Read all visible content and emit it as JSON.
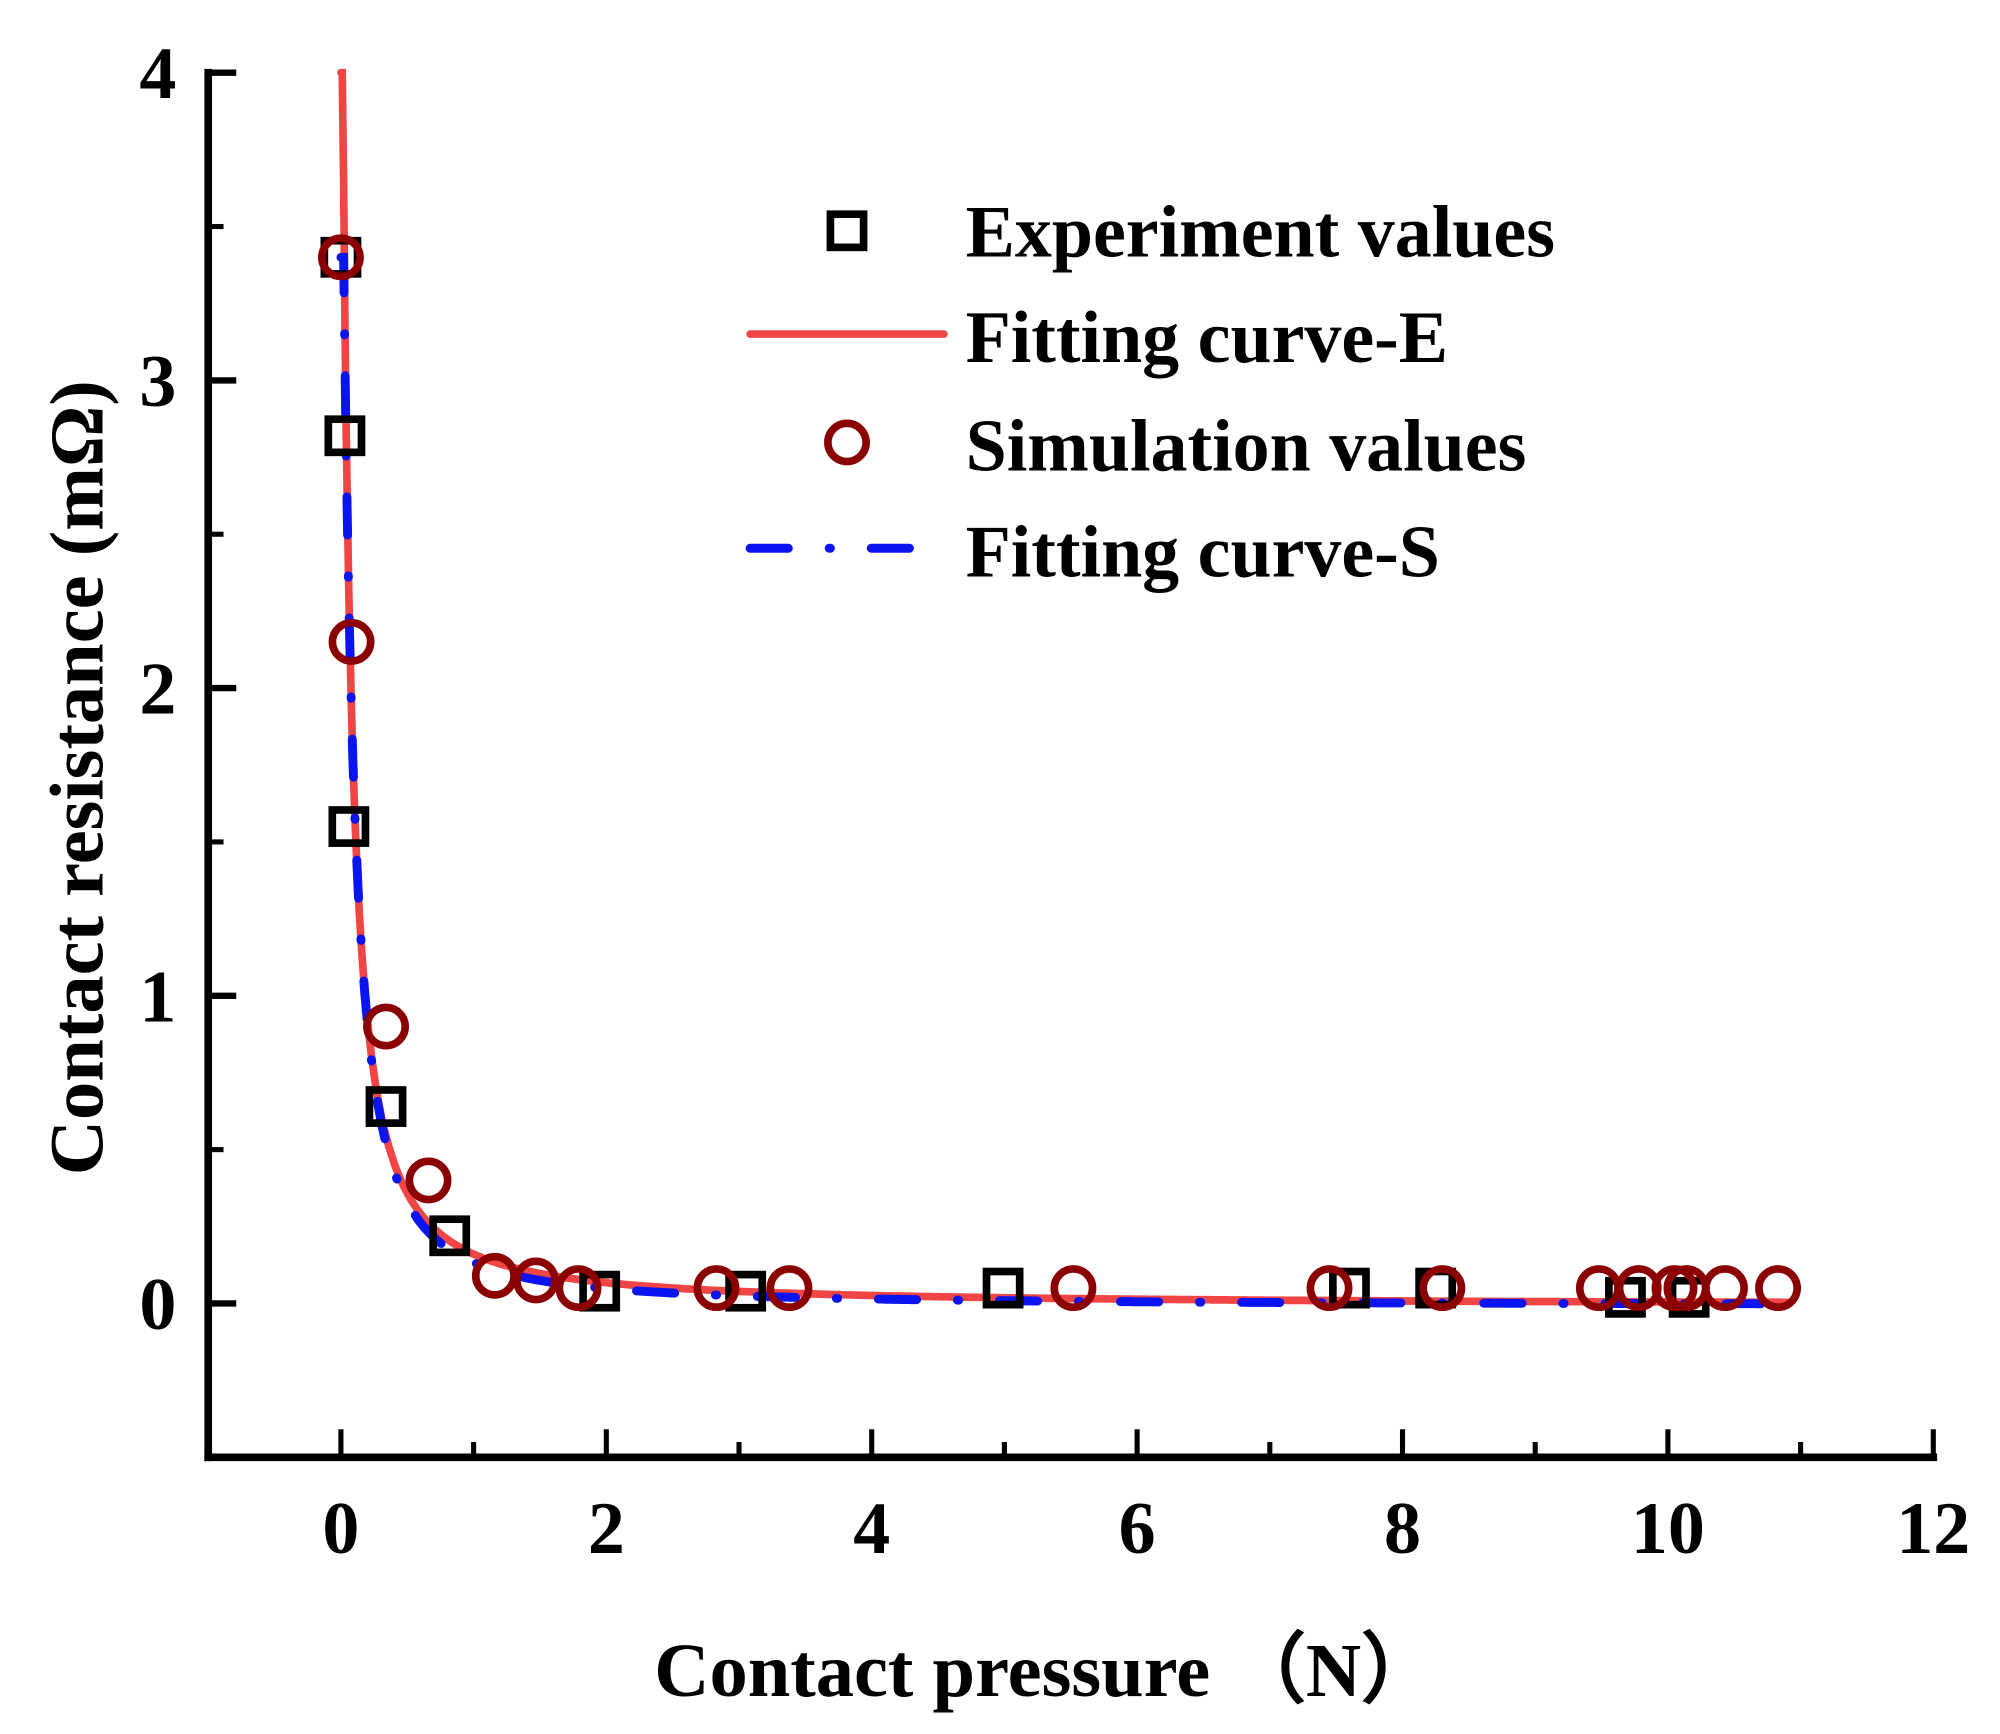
{
  "chart_data": {
    "type": "scatter",
    "title": "",
    "xlabel": "Contact pressure （N）",
    "ylabel": "Contact resistance (mΩ)",
    "xlim": [
      -1,
      12
    ],
    "ylim": [
      -0.5,
      4
    ],
    "xticks": [
      0,
      2,
      4,
      6,
      8,
      10,
      12
    ],
    "xtick_labels": [
      "0",
      "2",
      "4",
      "6",
      "8",
      "10",
      "12"
    ],
    "x_minor_ticks": [
      1,
      3,
      5,
      7,
      9,
      11
    ],
    "yticks": [
      0,
      1,
      2,
      3,
      4
    ],
    "ytick_labels": [
      "0",
      "1",
      "2",
      "3",
      "4"
    ],
    "y_minor_ticks": [
      0.5,
      1.5,
      2.5,
      3.5
    ],
    "grid": false,
    "legend_position": "top-right",
    "series": [
      {
        "name": "Experiment values",
        "kind": "scatter",
        "marker": "square",
        "color": "#000000",
        "points": [
          [
            0.0,
            3.4
          ],
          [
            0.03,
            2.82
          ],
          [
            0.06,
            1.55
          ],
          [
            0.34,
            0.64
          ],
          [
            0.82,
            0.22
          ],
          [
            1.95,
            0.04
          ],
          [
            3.05,
            0.04
          ],
          [
            4.99,
            0.05
          ],
          [
            7.6,
            0.05
          ],
          [
            8.25,
            0.05
          ],
          [
            9.68,
            0.02
          ],
          [
            10.16,
            0.02
          ]
        ]
      },
      {
        "name": "Fitting curve-E",
        "kind": "line",
        "style": "solid",
        "color": "#f04545",
        "model": "power",
        "x_range": [
          0.0,
          10.9
        ],
        "y_start": 4.0
      },
      {
        "name": "Simulation values",
        "kind": "scatter",
        "marker": "circle",
        "color": "#8b0000",
        "points": [
          [
            0.0,
            3.4
          ],
          [
            0.08,
            2.15
          ],
          [
            0.34,
            0.9
          ],
          [
            0.66,
            0.4
          ],
          [
            1.16,
            0.09
          ],
          [
            1.47,
            0.075
          ],
          [
            1.79,
            0.05
          ],
          [
            2.83,
            0.05
          ],
          [
            3.38,
            0.05
          ],
          [
            5.52,
            0.05
          ],
          [
            7.45,
            0.05
          ],
          [
            8.3,
            0.05
          ],
          [
            9.48,
            0.05
          ],
          [
            9.78,
            0.05
          ],
          [
            10.05,
            0.05
          ],
          [
            10.14,
            0.05
          ],
          [
            10.43,
            0.05
          ],
          [
            10.83,
            0.05
          ]
        ]
      },
      {
        "name": "Fitting curve-S",
        "kind": "line",
        "style": "dash-dot",
        "color": "#0a14f0",
        "model": "power",
        "x_range": [
          0.0,
          10.7
        ],
        "y_start": 3.4
      }
    ]
  }
}
